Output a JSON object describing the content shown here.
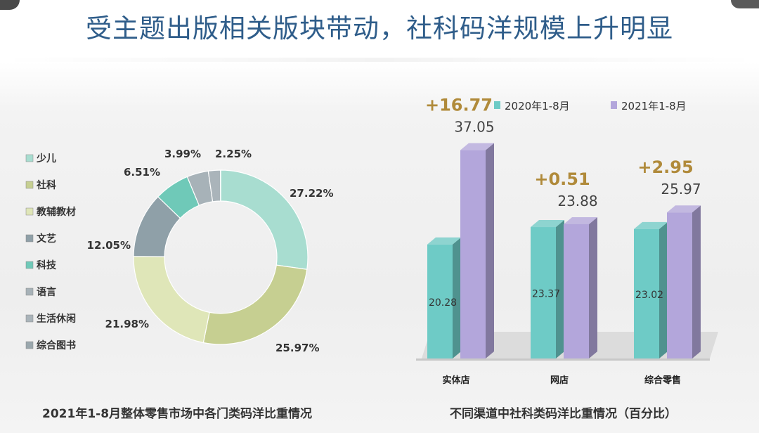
{
  "page": {
    "title": "受主题出版相关版块带动，社科码洋规模上升明显",
    "left_caption": "2021年1-8月整体零售市场中各门类码洋比重情况",
    "right_caption": "不同渠道中社科类码洋比重情况（百分比）"
  },
  "chart_data": [
    {
      "type": "pie",
      "donut": true,
      "slices": [
        {
          "label": "少儿",
          "value": 27.22,
          "display": "27.22%",
          "color": "#a8ddd0"
        },
        {
          "label": "社科",
          "value": 25.97,
          "display": "25.97%",
          "color": "#c6cf91"
        },
        {
          "label": "教辅教材",
          "value": 21.98,
          "display": "21.98%",
          "color": "#dfe6b8"
        },
        {
          "label": "文艺",
          "value": 12.05,
          "display": "12.05%",
          "color": "#8fa0a8"
        },
        {
          "label": "科技",
          "value": 6.51,
          "display": "6.51%",
          "color": "#6fc9b8"
        },
        {
          "label": "语言",
          "value": 3.99,
          "display": "3.99%",
          "color": "#a7b2b8"
        },
        {
          "label": "生活休闲",
          "value": 2.25,
          "display": "2.25%",
          "color": "#aab4ba"
        },
        {
          "label": "综合图书",
          "value": 0.03,
          "display": "",
          "color": "#9aa7ad"
        }
      ],
      "legend_position": "left"
    },
    {
      "type": "bar",
      "categories": [
        "实体店",
        "网店",
        "综合零售"
      ],
      "series": [
        {
          "name": "2020年1-8月",
          "values": [
            20.28,
            23.37,
            23.02
          ],
          "labels": [
            "20.28",
            "23.37",
            "23.02"
          ],
          "color": "#6ecbc6"
        },
        {
          "name": "2021年1-8月",
          "values": [
            37.05,
            23.88,
            25.97
          ],
          "labels": [
            "37.05",
            "23.88",
            "25.97"
          ],
          "color": "#b3a6db"
        }
      ],
      "deltas": [
        "+16.77",
        "+0.51",
        "+2.95"
      ],
      "delta_color": "#b08a3a",
      "ylim": [
        0,
        40
      ],
      "legend_position": "top",
      "style": "3d"
    }
  ]
}
